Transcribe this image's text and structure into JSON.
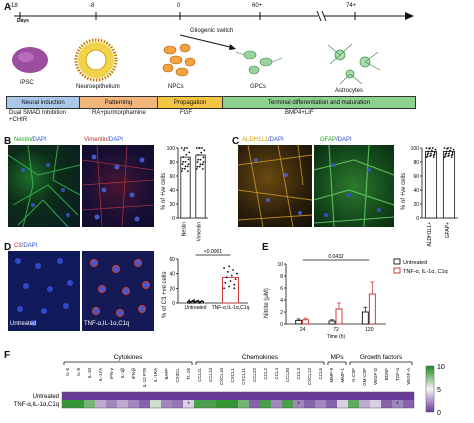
{
  "panelA": {
    "label": "A",
    "days_label": "Days",
    "day_ticks": [
      "-18",
      "-8",
      "0",
      "60+",
      "74+"
    ],
    "switch_label": "Gliogenic switch",
    "cell_types": [
      "iPSC",
      "Neuroepithelium",
      "NPCs",
      "GPCs",
      "Astrocytes"
    ],
    "phases": [
      {
        "name": "Neural induction",
        "color": "#a9c8ea"
      },
      {
        "name": "Patterning",
        "color": "#f2b67c"
      },
      {
        "name": "Propagation",
        "color": "#f4c542"
      },
      {
        "name": "Terminal differentiation and maturation",
        "color": "#8ed08e"
      }
    ],
    "treatments": [
      "Dual SMAD Inhibition\n+CHIR",
      "RA+purmorphamine",
      "FGF",
      "BMP4+LIF"
    ]
  },
  "panelB": {
    "label": "B",
    "img1_title_a": "Nestin",
    "img1_title_b": "/DAPI",
    "img2_title_a": "Vimentin",
    "img2_title_b": "/DAPI",
    "ylabel": "% of +ve cells",
    "chart_data": {
      "type": "bar",
      "categories": [
        "Nestin",
        "Vimentin"
      ],
      "values": [
        87,
        90
      ],
      "ylim": [
        0,
        100
      ],
      "yticks": [
        "0",
        "20",
        "40",
        "60",
        "80",
        "100"
      ]
    }
  },
  "panelC": {
    "label": "C",
    "img1_title_a": "ALDH1L1",
    "img1_title_b": "/DAPI",
    "img2_title_a": "GFAP",
    "img2_title_b": "/DAPI",
    "ylabel": "% of +ve cells",
    "chart_data": {
      "type": "bar",
      "categories": [
        "ALDH1L1+",
        "GFAP+"
      ],
      "values": [
        95,
        95
      ],
      "ylim": [
        0,
        100
      ],
      "yticks": [
        "0",
        "20",
        "40",
        "60",
        "80",
        "100"
      ]
    }
  },
  "panelD": {
    "label": "D",
    "img_title_a": "C3",
    "img_title_b": "/DAPI",
    "img1_caption": "Untreated",
    "img2_caption": "TNF-α,IL-1α,C1q",
    "ylabel": "% of C3 +ve cells",
    "pvalue": "<0.0001",
    "chart_data": {
      "type": "bar",
      "categories": [
        "Untreated",
        "TNF-α,IL-1α,C1q"
      ],
      "values": [
        2,
        35
      ],
      "ylim": [
        0,
        60
      ],
      "yticks": [
        "0",
        "20",
        "40",
        "60"
      ]
    }
  },
  "panelE": {
    "label": "E",
    "ylabel": "Nitrite (μM)",
    "xlabel": "Time (h)",
    "pvalue": "0.0432",
    "legend": [
      "Untreated",
      "TNF-α, IL-1α, C1q"
    ],
    "chart_data": {
      "type": "bar",
      "categories": [
        "24",
        "72",
        "120"
      ],
      "series": [
        {
          "name": "Untreated",
          "values": [
            0.6,
            0.5,
            2.0
          ]
        },
        {
          "name": "TNF-α, IL-1α, C1q",
          "values": [
            0.7,
            2.5,
            5.0
          ]
        }
      ],
      "ylim": [
        0,
        10
      ],
      "yticks": [
        "0",
        "2",
        "4",
        "6",
        "8",
        "10"
      ]
    }
  },
  "panelF": {
    "label": "F",
    "groups": [
      "Cytokines",
      "Chemokines",
      "MPs",
      "Growth factors"
    ],
    "rows": [
      "Untreated",
      "TNF-α,IL-1α,C1q"
    ],
    "columns": [
      "IL-6",
      "IL-8",
      "IL-10",
      "IL-17A",
      "IFN-γ",
      "IL-1β",
      "IFN-β",
      "IL-12 P70",
      "IL-1RA",
      "BAFF",
      "CX3CL",
      "TL-26",
      "CCL11",
      "CCL13",
      "CXCL10",
      "CXCL1",
      "CXCL11",
      "CCL22",
      "CCL2",
      "CCL4",
      "CCL20",
      "CCL3",
      "CXCL12",
      "CCL5",
      "MMP-9",
      "MMP-1",
      "G-CSF",
      "GM-CSF",
      "VEGF-D",
      "BDNF",
      "TGF-α",
      "VEGF-A"
    ],
    "untreated_row": [
      0,
      0,
      0,
      0,
      0,
      0,
      0,
      0,
      0,
      0,
      0,
      0,
      0,
      0,
      0,
      0,
      0,
      0,
      0,
      0,
      0,
      0,
      0,
      0,
      0,
      0,
      0,
      0,
      0,
      0,
      0,
      0
    ],
    "treated_row": [
      9.5,
      9.5,
      8,
      3,
      2,
      3,
      2,
      1,
      6,
      2,
      1.5,
      4,
      9,
      9,
      9.5,
      9.5,
      8,
      1,
      9,
      2,
      9,
      2,
      1,
      2,
      1,
      4,
      8.5,
      3,
      4,
      1,
      2,
      1
    ],
    "stars": [
      11,
      21,
      30
    ],
    "colorbar_ticks": [
      "10",
      "5",
      "0"
    ],
    "colors": {
      "high": "#1f8a1f",
      "mid": "#f5f5f5",
      "low": "#6a3c9a"
    }
  }
}
